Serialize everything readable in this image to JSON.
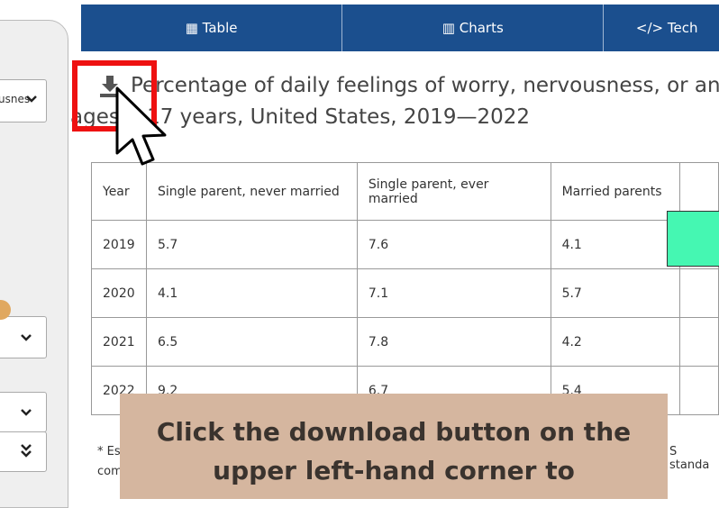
{
  "sidebar": {
    "dropdown_text": "usnes"
  },
  "tabs": [
    "Table",
    "Charts",
    "</> Tech"
  ],
  "title": {
    "line1": "Percentage of daily feelings of worry, nervousness, or anxie",
    "line2": "ages 5-17 years, United States, 2019—2022"
  },
  "table": {
    "header": [
      "Year",
      "Single parent, never married",
      "Single parent, ever married",
      "Married parents"
    ],
    "rows": [
      [
        "2019",
        "5.7",
        "7.6",
        "4.1"
      ],
      [
        "2020",
        "4.1",
        "7.1",
        "5.7"
      ],
      [
        "2021",
        "6.5",
        "7.8",
        "4.2"
      ],
      [
        "2022",
        "9.2",
        "6.7",
        "5.4"
      ]
    ]
  },
  "footnote": {
    "left1": "* Est",
    "left2": "com",
    "right": "S standa"
  },
  "caption": {
    "line1": "Click the download button on the",
    "line2": "upper left-hand corner to"
  }
}
